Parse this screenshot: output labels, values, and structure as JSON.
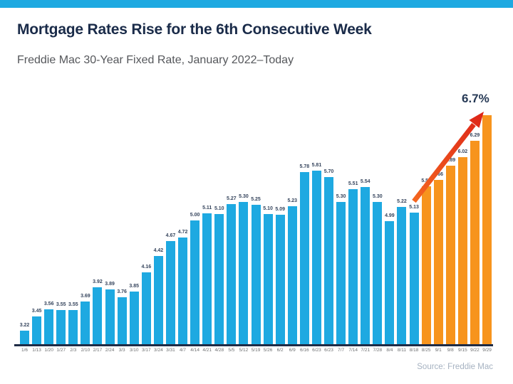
{
  "page": {
    "title": "Mortgage Rates Rise for the 6th Consecutive Week",
    "subtitle": "Freddie Mac 30-Year Fixed Rate, January 2022–Today",
    "annotation": "6.7%",
    "source": "Source: Freddie Mac"
  },
  "colors": {
    "accent_blue": "#1EA9E1",
    "highlight_orange": "#F7941D",
    "arrow_tail": "#F4661F",
    "arrow_head": "#DD2418",
    "axis_navy": "#1E2B45"
  },
  "chart_data": {
    "type": "bar",
    "title": "Mortgage Rates Rise for the 6th Consecutive Week",
    "subtitle": "Freddie Mac 30-Year Fixed Rate, January 2022–Today",
    "xlabel": "",
    "ylabel": "",
    "ylim": [
      3.0,
      7.0
    ],
    "grid": false,
    "legend_position": "none",
    "categories": [
      "1/6",
      "1/13",
      "1/20",
      "1/27",
      "2/3",
      "2/10",
      "2/17",
      "2/24",
      "3/3",
      "3/10",
      "3/17",
      "3/24",
      "3/31",
      "4/7",
      "4/14",
      "4/21",
      "4/28",
      "5/5",
      "5/12",
      "5/19",
      "5/26",
      "6/2",
      "6/9",
      "6/16",
      "6/23",
      "6/23",
      "7/7",
      "7/14",
      "7/21",
      "7/28",
      "8/4",
      "8/11",
      "8/18",
      "8/25",
      "9/1",
      "9/8",
      "9/15",
      "9/22",
      "9/29"
    ],
    "values": [
      3.22,
      3.45,
      3.56,
      3.55,
      3.55,
      3.69,
      3.92,
      3.89,
      3.76,
      3.85,
      4.16,
      4.42,
      4.67,
      4.72,
      5.0,
      5.11,
      5.1,
      5.27,
      5.3,
      5.25,
      5.1,
      5.09,
      5.23,
      5.78,
      5.81,
      5.7,
      5.3,
      5.51,
      5.54,
      5.3,
      4.99,
      5.22,
      5.13,
      5.55,
      5.66,
      5.89,
      6.02,
      6.29,
      6.7
    ],
    "bar_value_labels": [
      "3.22",
      "3.45",
      "3.56",
      "3.55",
      "3.55",
      "3.69",
      "3.92",
      "3.89",
      "3.76",
      "3.85",
      "4.16",
      "4.42",
      "4.67",
      "4.72",
      "5.00",
      "5.11",
      "5.10",
      "5.27",
      "5.30",
      "5.25",
      "5.10",
      "5.09",
      "5.23",
      "5.78",
      "5.81",
      "5.70",
      "5.30",
      "5.51",
      "5.54",
      "5.30",
      "4.99",
      "5.22",
      "5.13",
      "5.55",
      "5.66",
      "5.89",
      "6.02",
      "6.29",
      ""
    ],
    "highlight_start_index": 33,
    "series_colors": {
      "regular": "#1EA9E1",
      "highlight": "#F7941D"
    },
    "annotation": {
      "text": "6.7%",
      "target_category": "9/29"
    }
  }
}
